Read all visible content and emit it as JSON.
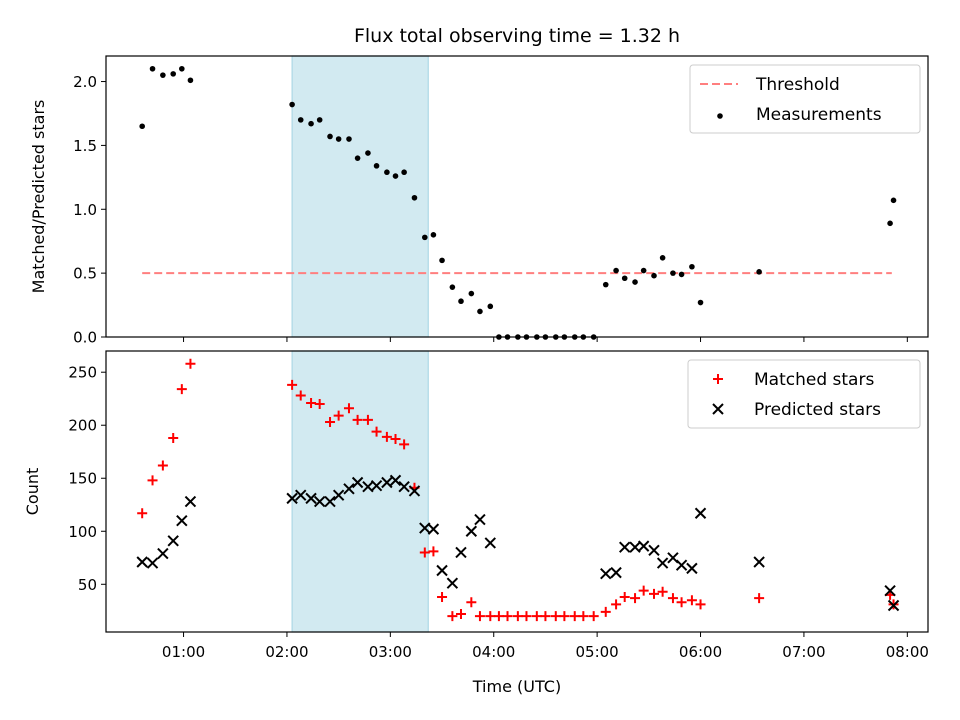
{
  "title": "Flux total observing time = 1.32 h",
  "xlabel": "Time (UTC)",
  "x_ticks": [
    "01:00",
    "02:00",
    "03:00",
    "04:00",
    "05:00",
    "06:00",
    "07:00",
    "08:00"
  ],
  "colors": {
    "threshold": "#ff7f7f",
    "measurement": "#000000",
    "matched": "#ff0000",
    "predicted": "#000000",
    "band": "#add8e6"
  },
  "chart_data": [
    {
      "type": "scatter",
      "ylabel": "Matched/Predicted stars",
      "xlim": [
        "00:15",
        "08:12"
      ],
      "ylim": [
        0,
        2.2
      ],
      "y_ticks": [
        0.0,
        0.5,
        1.0,
        1.5,
        2.0
      ],
      "grid": false,
      "legend_position": "top-right",
      "shaded_interval": [
        "02:03",
        "03:22"
      ],
      "threshold": {
        "name": "Threshold",
        "value": 0.5,
        "x_range": [
          "00:36",
          "07:51"
        ]
      },
      "series": [
        {
          "name": "Measurements",
          "marker": "dot",
          "points": [
            [
              "00:36",
              1.65
            ],
            [
              "00:42",
              2.1
            ],
            [
              "00:48",
              2.05
            ],
            [
              "00:54",
              2.06
            ],
            [
              "00:59",
              2.1
            ],
            [
              "01:04",
              2.01
            ],
            [
              "02:03",
              1.82
            ],
            [
              "02:08",
              1.7
            ],
            [
              "02:14",
              1.67
            ],
            [
              "02:19",
              1.7
            ],
            [
              "02:25",
              1.57
            ],
            [
              "02:30",
              1.55
            ],
            [
              "02:36",
              1.55
            ],
            [
              "02:41",
              1.4
            ],
            [
              "02:47",
              1.44
            ],
            [
              "02:52",
              1.34
            ],
            [
              "02:58",
              1.29
            ],
            [
              "03:03",
              1.26
            ],
            [
              "03:08",
              1.29
            ],
            [
              "03:14",
              1.09
            ],
            [
              "03:20",
              0.78
            ],
            [
              "03:25",
              0.8
            ],
            [
              "03:30",
              0.6
            ],
            [
              "03:36",
              0.39
            ],
            [
              "03:41",
              0.28
            ],
            [
              "03:47",
              0.34
            ],
            [
              "03:52",
              0.2
            ],
            [
              "03:58",
              0.24
            ],
            [
              "04:03",
              0.0
            ],
            [
              "04:08",
              0.0
            ],
            [
              "04:14",
              0.0
            ],
            [
              "04:19",
              0.0
            ],
            [
              "04:25",
              0.0
            ],
            [
              "04:30",
              0.0
            ],
            [
              "04:36",
              0.0
            ],
            [
              "04:41",
              0.0
            ],
            [
              "04:47",
              0.0
            ],
            [
              "04:52",
              0.0
            ],
            [
              "04:58",
              0.0
            ],
            [
              "05:05",
              0.41
            ],
            [
              "05:11",
              0.52
            ],
            [
              "05:16",
              0.46
            ],
            [
              "05:22",
              0.43
            ],
            [
              "05:27",
              0.52
            ],
            [
              "05:33",
              0.48
            ],
            [
              "05:38",
              0.62
            ],
            [
              "05:44",
              0.5
            ],
            [
              "05:49",
              0.49
            ],
            [
              "05:55",
              0.55
            ],
            [
              "06:00",
              0.27
            ],
            [
              "06:34",
              0.51
            ],
            [
              "07:50",
              0.89
            ],
            [
              "07:52",
              1.07
            ]
          ]
        }
      ]
    },
    {
      "type": "scatter",
      "ylabel": "Count",
      "xlim": [
        "00:15",
        "08:12"
      ],
      "ylim": [
        5,
        270
      ],
      "y_ticks": [
        50,
        100,
        150,
        200,
        250
      ],
      "grid": false,
      "legend_position": "top-right",
      "shaded_interval": [
        "02:03",
        "03:22"
      ],
      "series": [
        {
          "name": "Matched stars",
          "marker": "plus",
          "points": [
            [
              "00:36",
              117
            ],
            [
              "00:42",
              148
            ],
            [
              "00:48",
              162
            ],
            [
              "00:54",
              188
            ],
            [
              "00:59",
              234
            ],
            [
              "01:04",
              258
            ],
            [
              "02:03",
              238
            ],
            [
              "02:08",
              228
            ],
            [
              "02:14",
              221
            ],
            [
              "02:19",
              220
            ],
            [
              "02:25",
              203
            ],
            [
              "02:30",
              209
            ],
            [
              "02:36",
              216
            ],
            [
              "02:41",
              205
            ],
            [
              "02:47",
              205
            ],
            [
              "02:52",
              194
            ],
            [
              "02:58",
              189
            ],
            [
              "03:03",
              187
            ],
            [
              "03:08",
              182
            ],
            [
              "03:14",
              141
            ],
            [
              "03:20",
              80
            ],
            [
              "03:25",
              81
            ],
            [
              "03:30",
              38
            ],
            [
              "03:36",
              20
            ],
            [
              "03:41",
              22
            ],
            [
              "03:47",
              33
            ],
            [
              "03:52",
              20
            ],
            [
              "03:58",
              20
            ],
            [
              "04:03",
              20
            ],
            [
              "04:08",
              20
            ],
            [
              "04:14",
              20
            ],
            [
              "04:19",
              20
            ],
            [
              "04:25",
              20
            ],
            [
              "04:30",
              20
            ],
            [
              "04:36",
              20
            ],
            [
              "04:41",
              20
            ],
            [
              "04:47",
              20
            ],
            [
              "04:52",
              20
            ],
            [
              "04:58",
              20
            ],
            [
              "05:05",
              24
            ],
            [
              "05:11",
              31
            ],
            [
              "05:16",
              38
            ],
            [
              "05:22",
              37
            ],
            [
              "05:27",
              44
            ],
            [
              "05:33",
              41
            ],
            [
              "05:38",
              43
            ],
            [
              "05:44",
              37
            ],
            [
              "05:49",
              33
            ],
            [
              "05:55",
              35
            ],
            [
              "06:00",
              31
            ],
            [
              "06:34",
              37
            ],
            [
              "07:50",
              40
            ],
            [
              "07:52",
              31
            ]
          ]
        },
        {
          "name": "Predicted stars",
          "marker": "x",
          "points": [
            [
              "00:36",
              71
            ],
            [
              "00:42",
              70
            ],
            [
              "00:48",
              79
            ],
            [
              "00:54",
              91
            ],
            [
              "00:59",
              110
            ],
            [
              "01:04",
              128
            ],
            [
              "02:03",
              131
            ],
            [
              "02:08",
              134
            ],
            [
              "02:14",
              131
            ],
            [
              "02:19",
              128
            ],
            [
              "02:25",
              128
            ],
            [
              "02:30",
              134
            ],
            [
              "02:36",
              140
            ],
            [
              "02:41",
              146
            ],
            [
              "02:47",
              142
            ],
            [
              "02:52",
              143
            ],
            [
              "02:58",
              146
            ],
            [
              "03:03",
              148
            ],
            [
              "03:08",
              142
            ],
            [
              "03:14",
              138
            ],
            [
              "03:20",
              103
            ],
            [
              "03:25",
              102
            ],
            [
              "03:30",
              63
            ],
            [
              "03:36",
              51
            ],
            [
              "03:41",
              80
            ],
            [
              "03:47",
              100
            ],
            [
              "03:52",
              111
            ],
            [
              "03:58",
              89
            ],
            [
              "05:05",
              60
            ],
            [
              "05:11",
              61
            ],
            [
              "05:16",
              85
            ],
            [
              "05:22",
              85
            ],
            [
              "05:27",
              86
            ],
            [
              "05:33",
              82
            ],
            [
              "05:38",
              70
            ],
            [
              "05:44",
              75
            ],
            [
              "05:49",
              68
            ],
            [
              "05:55",
              65
            ],
            [
              "06:00",
              117
            ],
            [
              "06:34",
              71
            ],
            [
              "07:50",
              44
            ],
            [
              "07:52",
              30
            ]
          ]
        }
      ]
    }
  ]
}
